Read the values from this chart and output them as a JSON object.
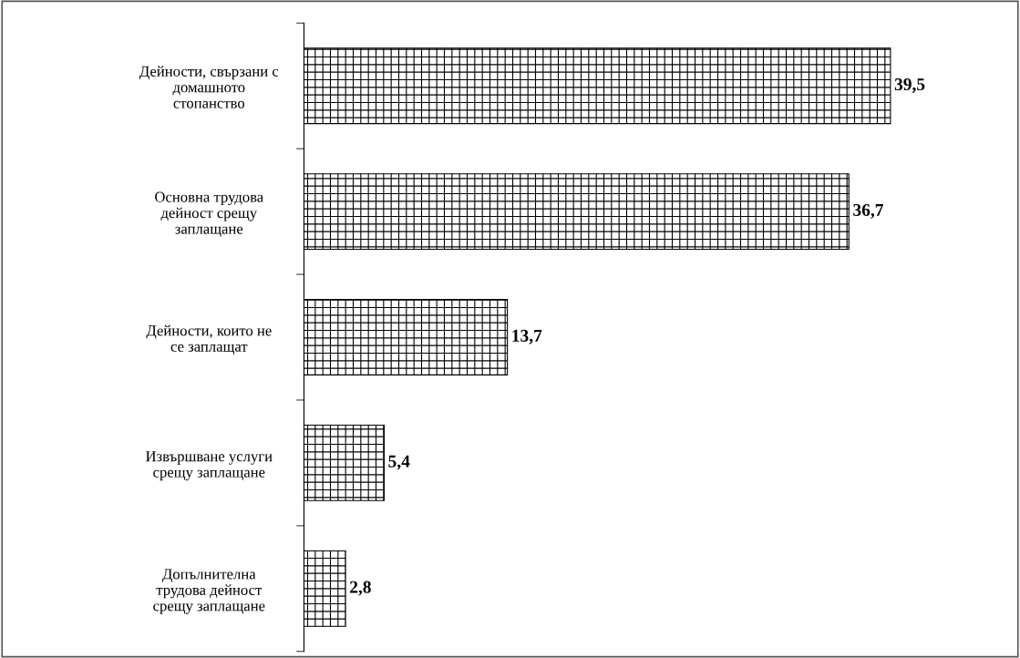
{
  "chart_data": {
    "type": "bar",
    "orientation": "horizontal",
    "categories": [
      "Дейности, свързани с\nдомашното\nстопанство",
      "Основна трудова\nдейност срещу\nзаплащане",
      "Дейности, които не\nсе заплащат",
      "Извършване услуги\nсрещу заплащане",
      "Допълнителна\nтрудова дейност\nсрещу заплащане"
    ],
    "values": [
      39.5,
      36.7,
      13.7,
      5.4,
      2.8
    ],
    "value_labels": [
      "39,5",
      "36,7",
      "13,7",
      "5,4",
      "2,8"
    ],
    "color": "#000000",
    "grid": false,
    "legend": false
  }
}
